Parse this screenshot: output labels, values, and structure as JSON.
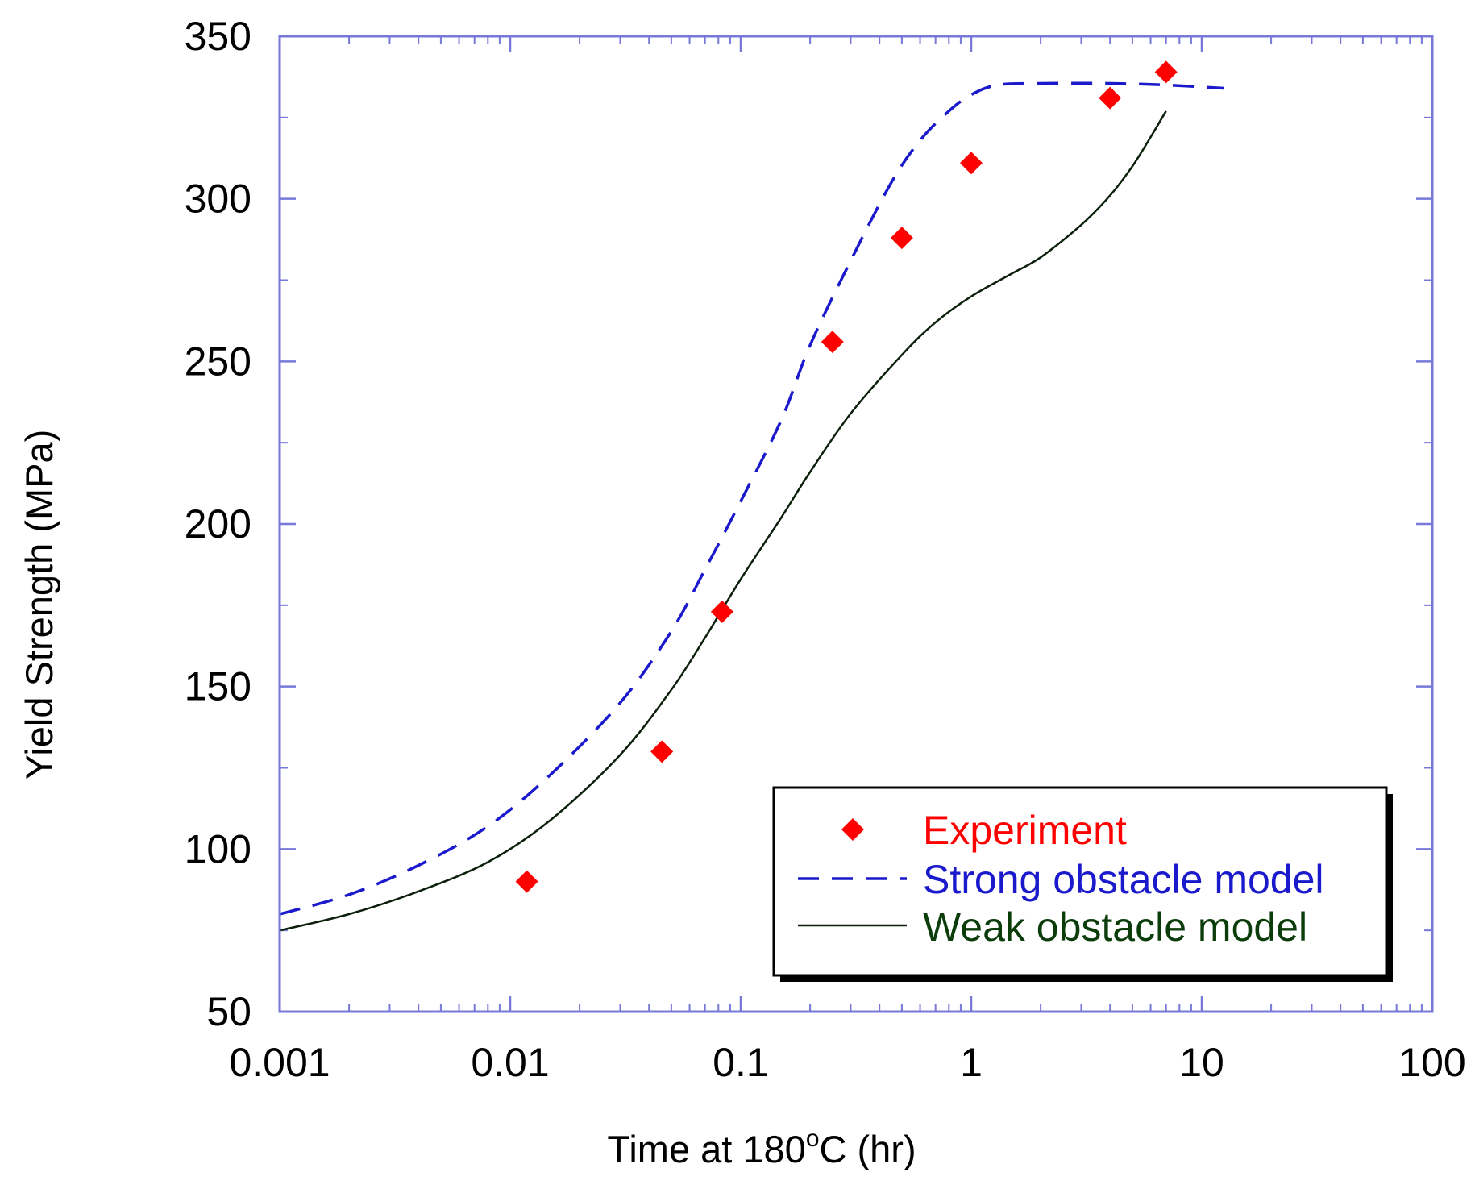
{
  "chart_data": {
    "type": "scatter",
    "title": "",
    "xlabel": "Time at 180°C (hr)",
    "xlabel_parts": {
      "prefix": "Time at 180",
      "degree": "o",
      "suffix": "C (hr)"
    },
    "ylabel": "Yield Strength (MPa)",
    "xscale": "log",
    "xlim": [
      0.001,
      100
    ],
    "ylim": [
      50,
      350
    ],
    "x_ticks": [
      0.001,
      0.01,
      0.1,
      1,
      10,
      100
    ],
    "x_tick_labels": [
      "0.001",
      "0.01",
      "0.1",
      "1",
      "10",
      "100"
    ],
    "y_ticks": [
      50,
      100,
      150,
      200,
      250,
      300,
      350
    ],
    "y_tick_labels": [
      "50",
      "100",
      "150",
      "200",
      "250",
      "300",
      "350"
    ],
    "grid": false,
    "legend_position": "bottom-right",
    "series": [
      {
        "name": "Experiment",
        "style": "markers",
        "marker": "diamond",
        "color": "#ff0000",
        "x": [
          0.0118,
          0.0455,
          0.083,
          0.25,
          0.5,
          1.0,
          4.0,
          7.0
        ],
        "y": [
          90,
          130,
          173,
          256,
          288,
          311,
          331,
          339
        ]
      },
      {
        "name": "Strong obstacle model",
        "style": "dashed",
        "color": "#1a1acc",
        "x": [
          0.001,
          0.002,
          0.004,
          0.008,
          0.015,
          0.03,
          0.05,
          0.07,
          0.1,
          0.15,
          0.2,
          0.3,
          0.45,
          0.6,
          0.8,
          1.0,
          1.3,
          2.0,
          4.0,
          7.0,
          12.5
        ],
        "y": [
          80,
          86,
          95,
          107,
          123,
          145,
          167,
          186,
          207,
          232,
          255,
          281,
          305,
          318,
          327,
          332,
          335,
          335.5,
          335.5,
          335,
          334
        ]
      },
      {
        "name": "Weak obstacle model",
        "style": "solid",
        "color": "#0b1f0b",
        "x": [
          0.001,
          0.002,
          0.004,
          0.008,
          0.015,
          0.03,
          0.05,
          0.07,
          0.1,
          0.15,
          0.2,
          0.3,
          0.5,
          0.7,
          1.0,
          1.5,
          2.0,
          3.0,
          4.0,
          5.0,
          6.0,
          7.0
        ],
        "y": [
          75,
          80,
          87,
          96,
          109,
          129,
          149,
          165,
          183,
          202,
          216,
          234,
          252,
          262,
          270,
          277,
          282,
          292,
          301,
          310,
          319,
          327
        ]
      }
    ]
  },
  "legend": {
    "items": [
      {
        "label": "Experiment",
        "color": "#ff0000"
      },
      {
        "label": "Strong obstacle model",
        "color": "#1a1acc"
      },
      {
        "label": "Weak obstacle model",
        "color": "#0b3d0b"
      }
    ]
  },
  "colors": {
    "frame": "#7878d8",
    "experiment": "#ff0000",
    "strong": "#1a1acc",
    "weak": "#0b1f0b"
  }
}
